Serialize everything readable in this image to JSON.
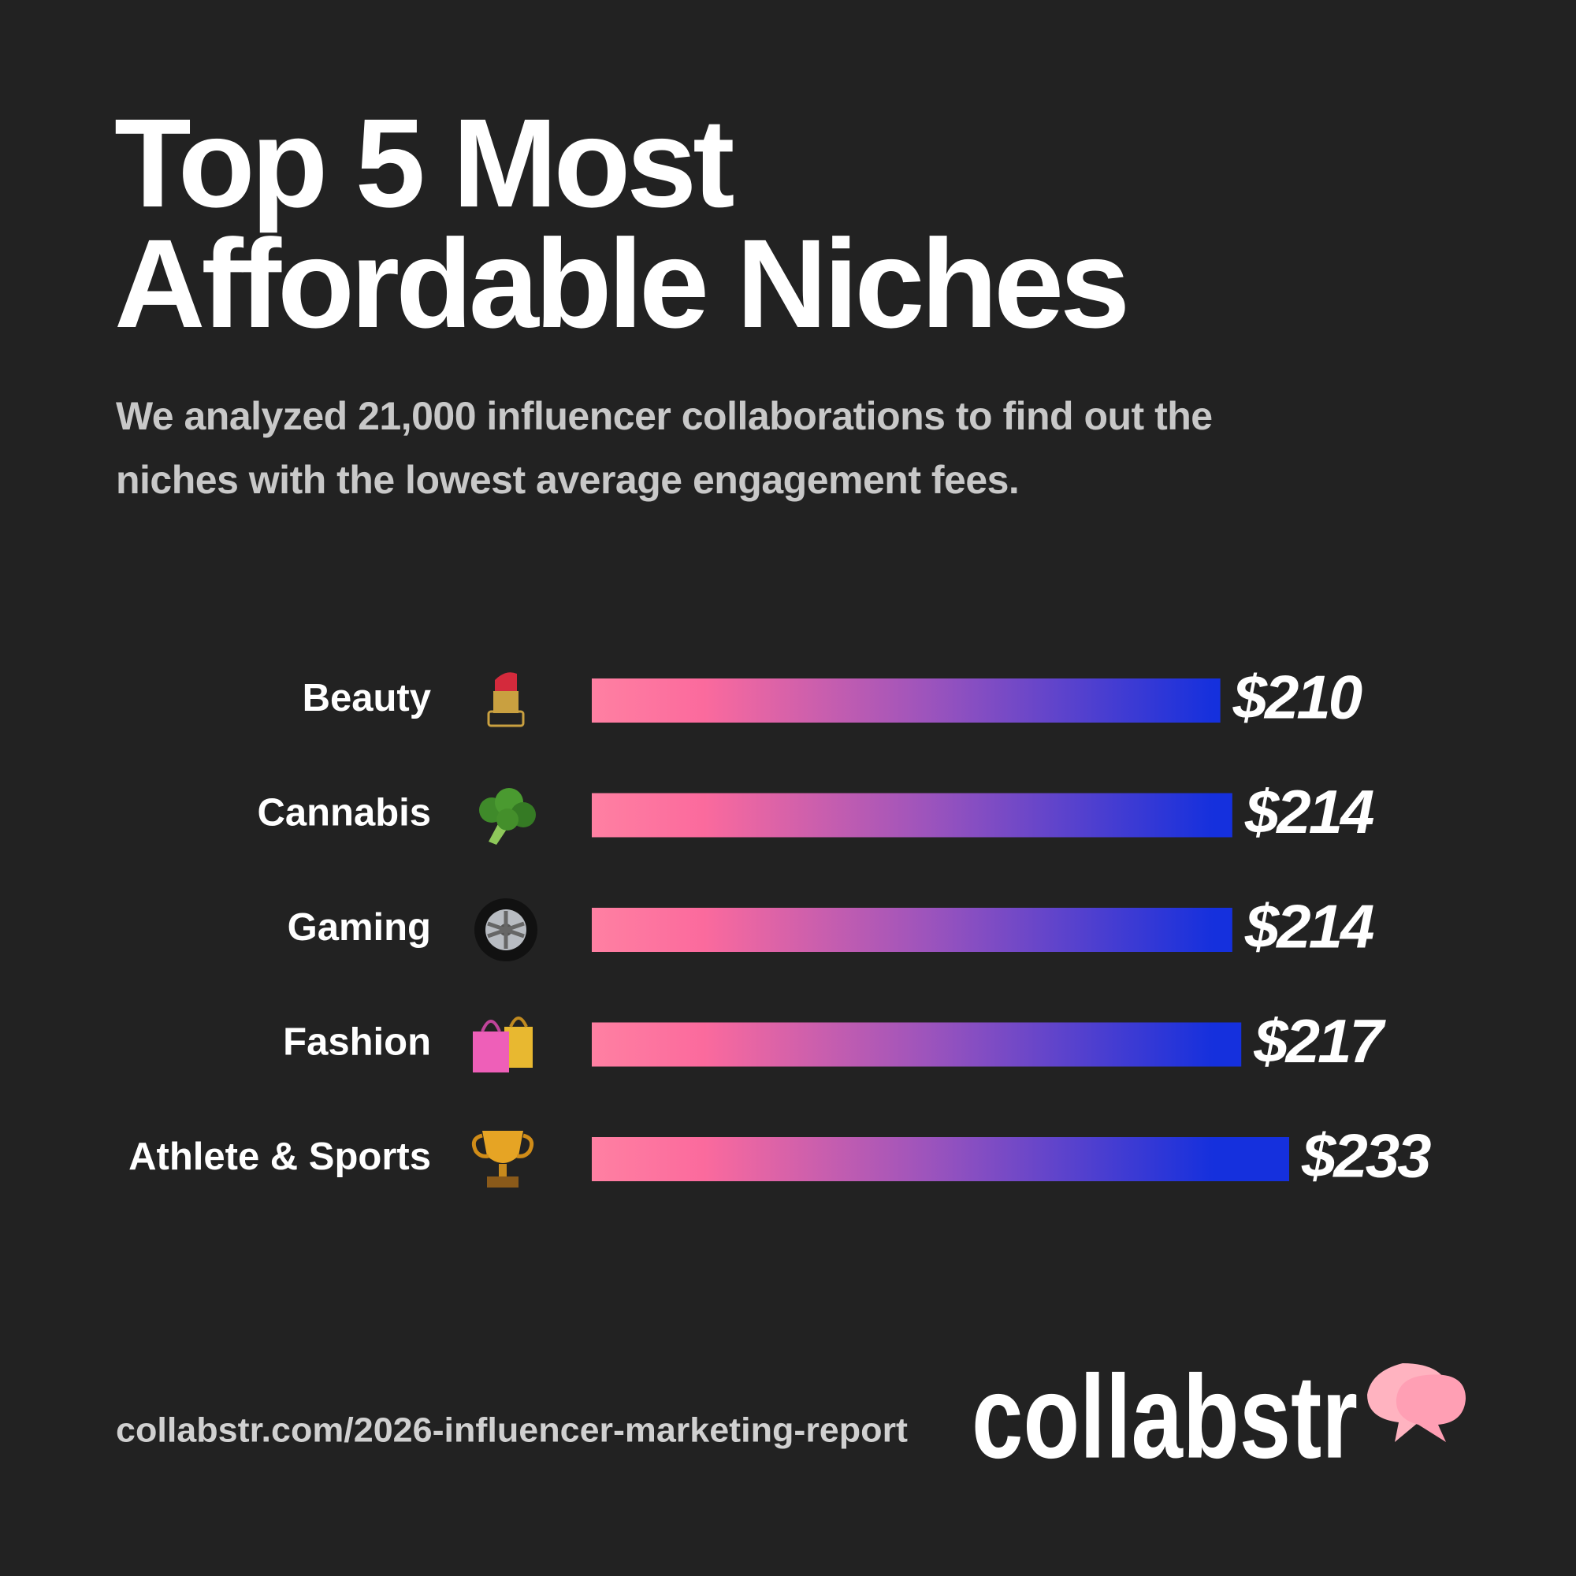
{
  "chart_data": {
    "type": "bar",
    "orientation": "horizontal",
    "title": "Top 5 Most Affordable Niches",
    "subtitle": "We analyzed 21,000 influencer collaborations to find out the niches with the lowest average engagement fees.",
    "categories": [
      "Beauty",
      "Cannabis",
      "Gaming",
      "Fashion",
      "Athlete & Sports"
    ],
    "values": [
      210,
      214,
      214,
      217,
      233
    ],
    "value_labels": [
      "$210",
      "$214",
      "$214",
      "$217",
      "$233"
    ]
  },
  "footer": {
    "url": "collabstr.com/2026-influencer-marketing-report",
    "brand": "collabstr"
  }
}
